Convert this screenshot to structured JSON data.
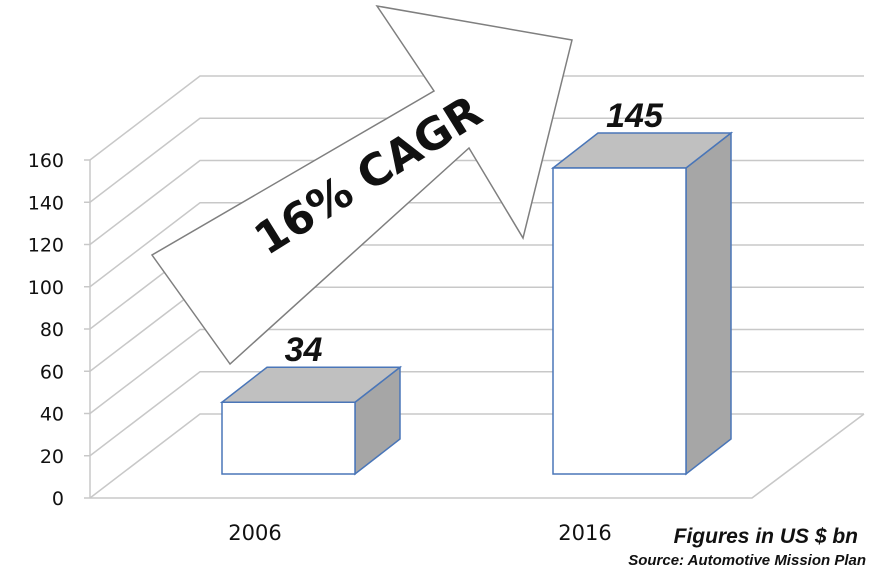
{
  "chart_data": {
    "type": "bar",
    "categories": [
      "2006",
      "2016"
    ],
    "values": [
      34,
      145
    ],
    "data_labels": [
      "34",
      "145"
    ],
    "ylim": [
      0,
      160
    ],
    "yticks": [
      0,
      20,
      40,
      60,
      80,
      100,
      120,
      140,
      160
    ],
    "grid": true,
    "style": "3d",
    "annotation": "16% CAGR",
    "units_note": "Figures in US $ bn",
    "source": "Source: Automotive Mission Plan",
    "colors": {
      "bar_front": "#ffffff",
      "bar_top": "#c0c0c0",
      "bar_side": "#a6a6a6",
      "bar_edge": "#4a76b8",
      "grid": "#c8c8c8"
    }
  }
}
